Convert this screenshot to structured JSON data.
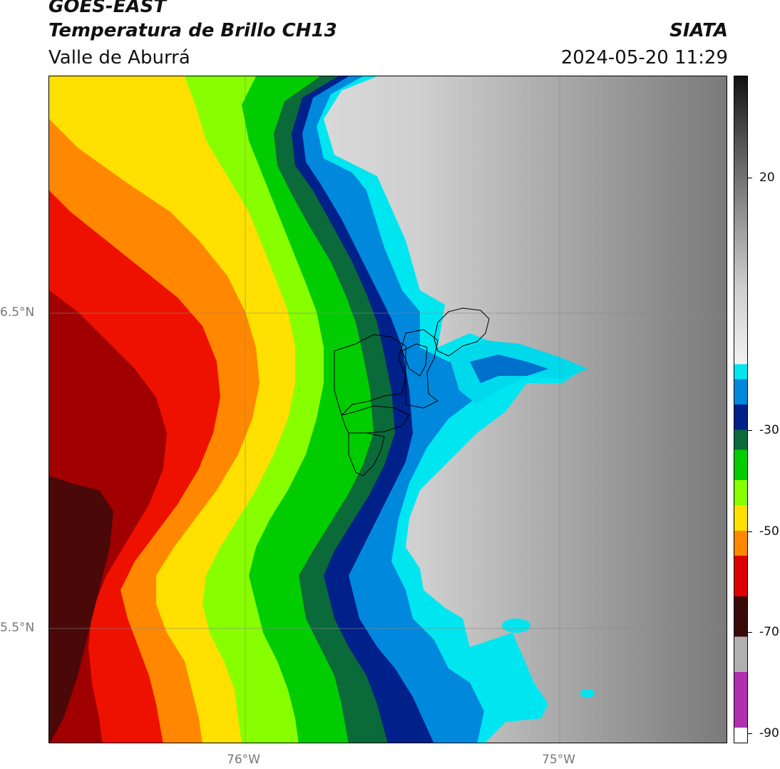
{
  "header": {
    "satellite": "GOES-EAST",
    "product": "Temperatura de Brillo CH13",
    "region": "Valle de Aburrá",
    "organization": "SIATA",
    "timestamp": "2024-05-20 11:29"
  },
  "map": {
    "lat_labels": [
      "6.5°N",
      "5.5°N"
    ],
    "lon_labels": [
      "76°W",
      "75°W"
    ],
    "gridlines": true,
    "basemap_style": "brightness-temperature contour fill",
    "region_outline": "Valle de Aburrá municipalities"
  },
  "colorbar": {
    "orientation": "vertical",
    "placement": "right",
    "tick_labels": [
      "20",
      "-30",
      "-50",
      "-70",
      "-90"
    ],
    "min": -92,
    "max": 40,
    "scheme": [
      {
        "from": -92,
        "to": -89,
        "color": "#ffffff"
      },
      {
        "from": -89,
        "to": -78,
        "color": "#b030b0"
      },
      {
        "from": -78,
        "to": -71,
        "color": "#b0b0b0"
      },
      {
        "from": -71,
        "to": -63,
        "color": "#3a0a0a"
      },
      {
        "from": -63,
        "to": -55,
        "color": "#dd0000"
      },
      {
        "from": -55,
        "to": -50,
        "color": "#ff8800"
      },
      {
        "from": -50,
        "to": -45,
        "color": "#ffe000"
      },
      {
        "from": -45,
        "to": -40,
        "color": "#88ff00"
      },
      {
        "from": -40,
        "to": -34,
        "color": "#00cc00"
      },
      {
        "from": -34,
        "to": -30,
        "color": "#0a6a3a"
      },
      {
        "from": -30,
        "to": -25,
        "color": "#00208a"
      },
      {
        "from": -25,
        "to": -20,
        "color": "#0088dd"
      },
      {
        "from": -20,
        "to": -17,
        "color": "#00e6f0"
      },
      {
        "from": -17,
        "to": 40,
        "color": "#f0f0f0"
      }
    ]
  }
}
